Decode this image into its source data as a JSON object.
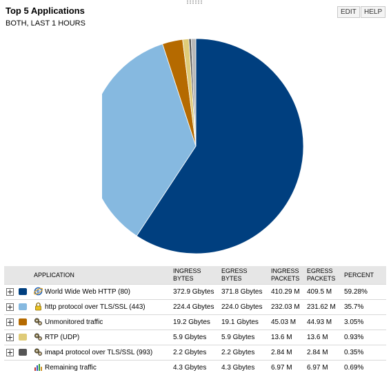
{
  "header": {
    "title": "Top 5 Applications",
    "subtitle": "BOTH, LAST 1 HOURS",
    "edit_label": "EDIT",
    "help_label": "HELP"
  },
  "table": {
    "columns": [
      "APPLICATION",
      "INGRESS BYTES",
      "EGRESS BYTES",
      "INGRESS PACKETS",
      "EGRESS PACKETS",
      "PERCENT"
    ],
    "column_lines": [
      [
        "APPLICATION"
      ],
      [
        "INGRESS",
        "BYTES"
      ],
      [
        "EGRESS",
        "BYTES"
      ],
      [
        "INGRESS",
        "PACKETS"
      ],
      [
        "EGRESS",
        "PACKETS"
      ],
      [
        "PERCENT"
      ]
    ],
    "rows": [
      {
        "application": "World Wide Web HTTP (80)",
        "ingress_bytes": "372.9 Gbytes",
        "egress_bytes": "371.8 Gbytes",
        "ingress_packets": "410.29 M",
        "egress_packets": "409.5 M",
        "percent": "59.28%",
        "color": "#003f7f",
        "icon": "globe-icon",
        "expandable": true
      },
      {
        "application": "http protocol over TLS/SSL (443)",
        "ingress_bytes": "224.4 Gbytes",
        "egress_bytes": "224.0 Gbytes",
        "ingress_packets": "232.03 M",
        "egress_packets": "231.62 M",
        "percent": "35.7%",
        "color": "#86b9e0",
        "icon": "lock-icon",
        "expandable": true
      },
      {
        "application": "Unmonitored traffic",
        "ingress_bytes": "19.2 Gbytes",
        "egress_bytes": "19.1 Gbytes",
        "ingress_packets": "45.03 M",
        "egress_packets": "44.93 M",
        "percent": "3.05%",
        "color": "#b56a00",
        "icon": "gears-icon",
        "expandable": true
      },
      {
        "application": "RTP (UDP)",
        "ingress_bytes": "5.9 Gbytes",
        "egress_bytes": "5.9 Gbytes",
        "ingress_packets": "13.6 M",
        "egress_packets": "13.6 M",
        "percent": "0.93%",
        "color": "#dfcb78",
        "icon": "gears-icon",
        "expandable": true
      },
      {
        "application": "imap4 protocol over TLS/SSL (993)",
        "ingress_bytes": "2.2 Gbytes",
        "egress_bytes": "2.2 Gbytes",
        "ingress_packets": "2.84 M",
        "egress_packets": "2.84 M",
        "percent": "0.35%",
        "color": "#555555",
        "icon": "gears-icon",
        "expandable": true
      },
      {
        "application": "Remaining traffic",
        "ingress_bytes": "4.3 Gbytes",
        "egress_bytes": "4.3 Gbytes",
        "ingress_packets": "6.97 M",
        "egress_packets": "6.97 M",
        "percent": "0.69%",
        "color": null,
        "icon": "bar-chart-icon",
        "expandable": false
      }
    ]
  },
  "chart_data": {
    "type": "pie",
    "categories": [
      "World Wide Web HTTP (80)",
      "http protocol over TLS/SSL (443)",
      "Unmonitored traffic",
      "RTP (UDP)",
      "imap4 protocol over TLS/SSL (993)",
      "Remaining traffic"
    ],
    "values": [
      59.28,
      35.7,
      3.05,
      0.93,
      0.35,
      0.69
    ],
    "colors": [
      "#003f7f",
      "#86b9e0",
      "#b56a00",
      "#dfcb78",
      "#555555",
      "#b8b8b8"
    ],
    "start": "12 o'clock",
    "direction": "clockwise"
  }
}
